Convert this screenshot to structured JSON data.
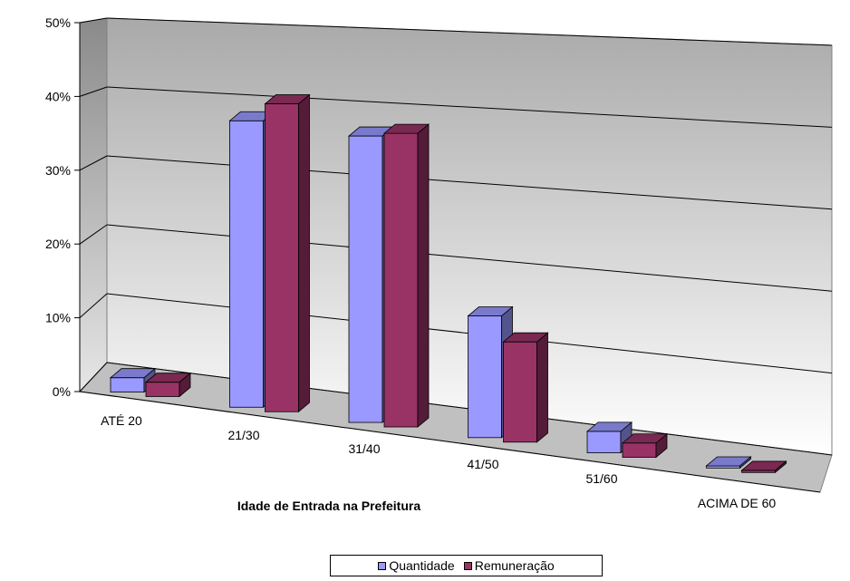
{
  "chart_data": {
    "type": "bar",
    "title": "",
    "xlabel": "Idade de Entrada na Prefeitura",
    "ylabel": "",
    "categories": [
      "ATÉ 20",
      "21/30",
      "31/40",
      "41/50",
      "51/60",
      "ACIMA DE 60"
    ],
    "yticks": [
      "0%",
      "10%",
      "20%",
      "30%",
      "40%",
      "50%"
    ],
    "ylim": [
      0,
      50
    ],
    "grid": true,
    "legend_position": "bottom",
    "series": [
      {
        "name": "Quantidade",
        "color": "#9999ff",
        "values": [
          2,
          40,
          40,
          17,
          3,
          0.3
        ]
      },
      {
        "name": "Remuneração",
        "color": "#993366",
        "values": [
          2,
          43,
          41,
          14,
          2,
          0.3
        ]
      }
    ]
  }
}
